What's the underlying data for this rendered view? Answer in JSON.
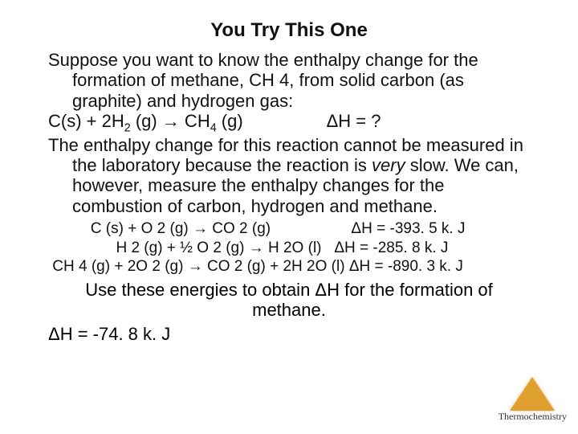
{
  "title": "You Try This One",
  "para1": "Suppose you want to know the enthalpy change for the formation of methane, CH 4, from solid carbon (as graphite) and hydrogen gas:",
  "main_eq_lhs": "C(s) + 2H",
  "main_eq_mid": " (g) → CH",
  "main_eq_rhs": " (g)",
  "main_eq_dh": "ΔH = ?",
  "para2a": "The enthalpy change for this reaction cannot be measured in the laboratory because the reaction is ",
  "para2_very": "very",
  "para2b": " slow.  We can, however, measure the enthalpy changes for the combustion of carbon, hydrogen and methane.",
  "eq1": "          C (s) + O 2 (g) → CO 2 (g)                   ΔH = -393. 5 k. J",
  "eq2": "                H 2 (g) + ½ O 2 (g) → H 2O (l)   ΔH = -285. 8 k. J",
  "eq3": " CH 4 (g) + 2O 2 (g) → CO 2 (g) + 2H 2O (l) ΔH = -890. 3 k. J",
  "instruction": "Use these energies to obtain ΔH for the formation of methane.",
  "answer": "ΔH = -74. 8 k. J",
  "footer": "Thermochemistry",
  "colors": {
    "text": "#111111",
    "background": "#ffffff",
    "logo": "#e0a030"
  },
  "fonts": {
    "title_size": 24,
    "body_size": 22,
    "eq_size": 19,
    "footer_size": 12
  }
}
